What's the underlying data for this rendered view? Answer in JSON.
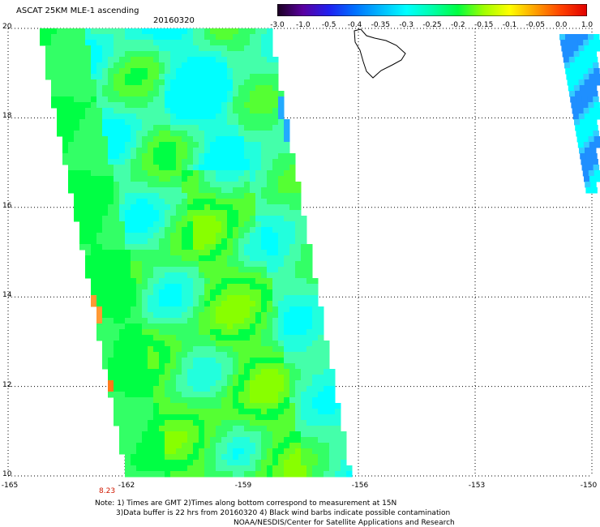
{
  "header": {
    "title": "ASCAT 25KM MLE-1 ascending",
    "date": "20160320"
  },
  "colorbar": {
    "labels": [
      "-3.0",
      "-1.0",
      "-0.5",
      "-0.4",
      "-0.35",
      "-0.3",
      "-0.25",
      "-0.2",
      "-0.15",
      "-0.1",
      "-0.05",
      "0.0",
      "1.0"
    ],
    "colors": [
      "#1a0020",
      "#5a00a0",
      "#2020f0",
      "#0070ff",
      "#00b8ff",
      "#00ffff",
      "#00ffaa",
      "#00ff40",
      "#a0ff00",
      "#ffff00",
      "#ffa000",
      "#ff4000",
      "#e00000"
    ]
  },
  "axes": {
    "lat_labels": [
      "20",
      "18",
      "16",
      "14",
      "12",
      "10"
    ],
    "lon_labels": [
      "-165",
      "-162",
      "-159",
      "-156",
      "-153",
      "-150"
    ]
  },
  "time_labels": [
    "8.23"
  ],
  "footer": {
    "note_line1": "Note: 1) Times are GMT 2)Times along bottom correspond to measurement at 15N",
    "note_line2": "3)Data buffer is 22 hrs from 20160320 4) Black wind barbs indicate possible contamination",
    "credit": "NOAA/NESDIS/Center for Satellite Applications and Research"
  }
}
